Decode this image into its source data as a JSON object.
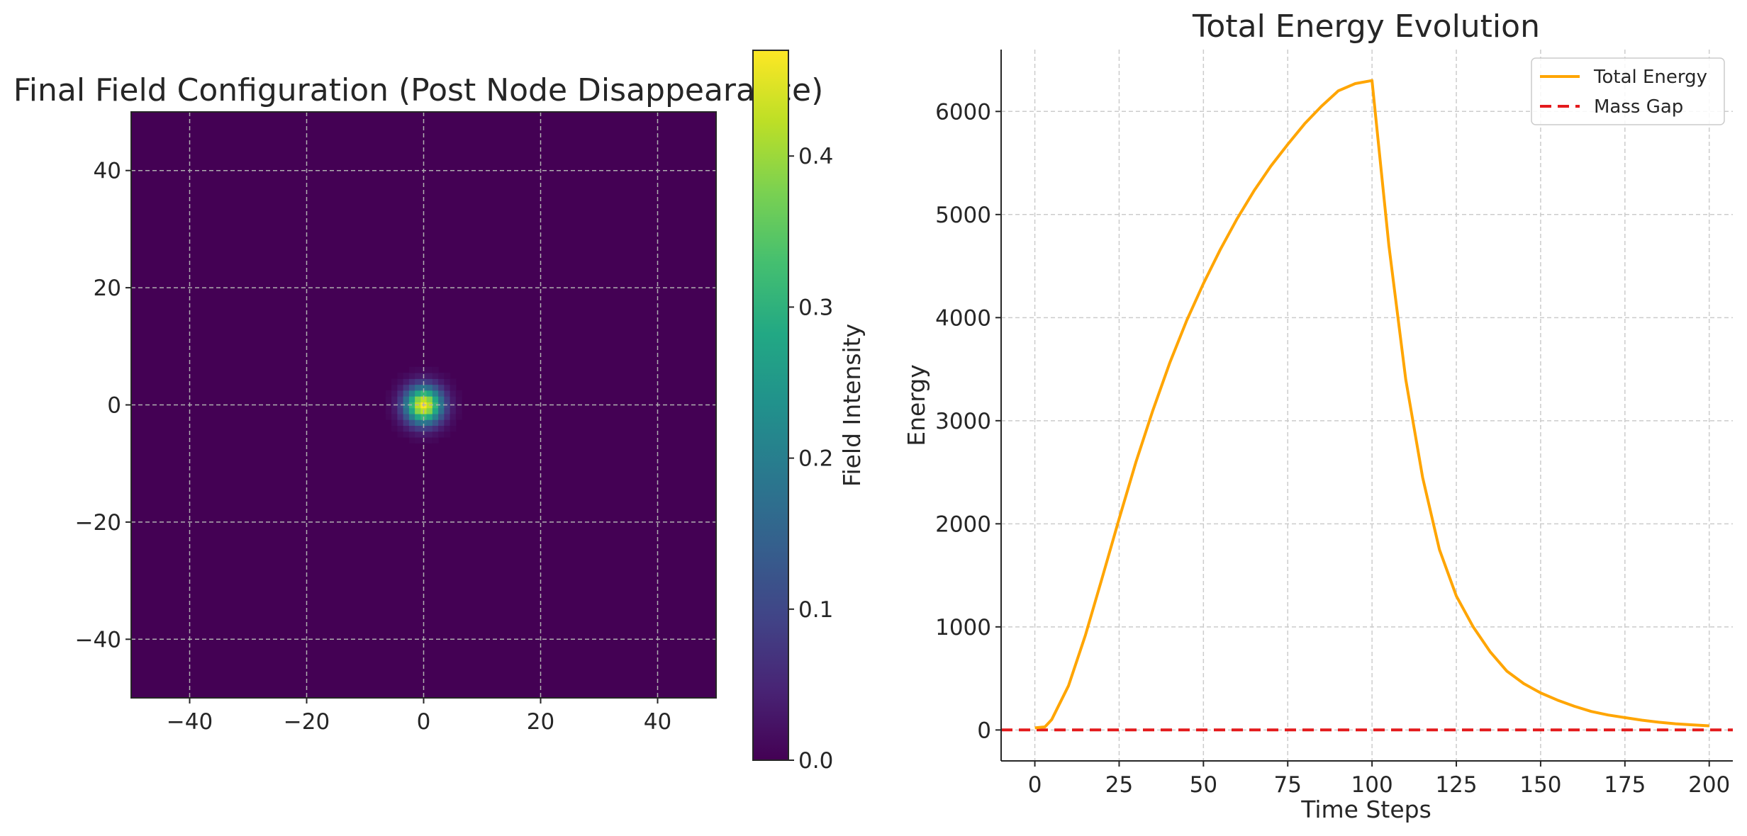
{
  "chart_data": [
    {
      "type": "heatmap",
      "title": "Final Field Configuration (Post Node Disappearance)",
      "xlabel": "",
      "ylabel": "",
      "xlim": [
        -50,
        50
      ],
      "ylim": [
        -50,
        50
      ],
      "xticks": [
        "−40",
        "−20",
        "0",
        "20",
        "40"
      ],
      "xtick_values": [
        -40,
        -20,
        0,
        20,
        40
      ],
      "yticks": [
        "40",
        "20",
        "0",
        "−20",
        "−40"
      ],
      "ytick_values": [
        40,
        20,
        0,
        -20,
        -40
      ],
      "grid": true,
      "colormap": "viridis",
      "peak": {
        "x": 0,
        "y": 0,
        "value": 0.47,
        "sigma": 2.2
      },
      "colorbar": {
        "label": "Field Intensity",
        "range": [
          0.0,
          0.47
        ],
        "ticks": [
          "0.0",
          "0.1",
          "0.2",
          "0.3",
          "0.4"
        ],
        "tick_values": [
          0.0,
          0.1,
          0.2,
          0.3,
          0.4
        ]
      }
    },
    {
      "type": "line",
      "title": "Total Energy Evolution",
      "xlabel": "Time Steps",
      "ylabel": "Energy",
      "xlim": [
        -10,
        207
      ],
      "ylim": [
        -300,
        6600
      ],
      "xticks": [
        "0",
        "25",
        "50",
        "75",
        "100",
        "125",
        "150",
        "175",
        "200"
      ],
      "xtick_values": [
        0,
        25,
        50,
        75,
        100,
        125,
        150,
        175,
        200
      ],
      "yticks": [
        "0",
        "1000",
        "2000",
        "3000",
        "4000",
        "5000",
        "6000"
      ],
      "ytick_values": [
        0,
        1000,
        2000,
        3000,
        4000,
        5000,
        6000
      ],
      "grid": true,
      "legend_position": "top-right",
      "series": [
        {
          "name": "Total Energy",
          "color": "#ffa500",
          "style": "solid",
          "x": [
            0,
            3,
            5,
            10,
            15,
            20,
            25,
            30,
            35,
            40,
            45,
            50,
            55,
            60,
            65,
            70,
            75,
            80,
            85,
            90,
            95,
            100,
            105,
            110,
            115,
            120,
            125,
            130,
            135,
            140,
            145,
            150,
            155,
            160,
            165,
            170,
            175,
            180,
            185,
            190,
            195,
            200
          ],
          "values": [
            20,
            30,
            100,
            430,
            920,
            1480,
            2050,
            2600,
            3100,
            3560,
            3970,
            4330,
            4660,
            4960,
            5230,
            5470,
            5680,
            5880,
            6050,
            6200,
            6270,
            6300,
            4700,
            3400,
            2450,
            1750,
            1300,
            1000,
            760,
            570,
            450,
            360,
            290,
            230,
            180,
            145,
            120,
            95,
            75,
            60,
            50,
            40
          ]
        },
        {
          "name": "Mass Gap",
          "color": "#e41a1c",
          "style": "dashed",
          "x": [
            -10,
            207
          ],
          "values": [
            0,
            0
          ]
        }
      ]
    }
  ]
}
